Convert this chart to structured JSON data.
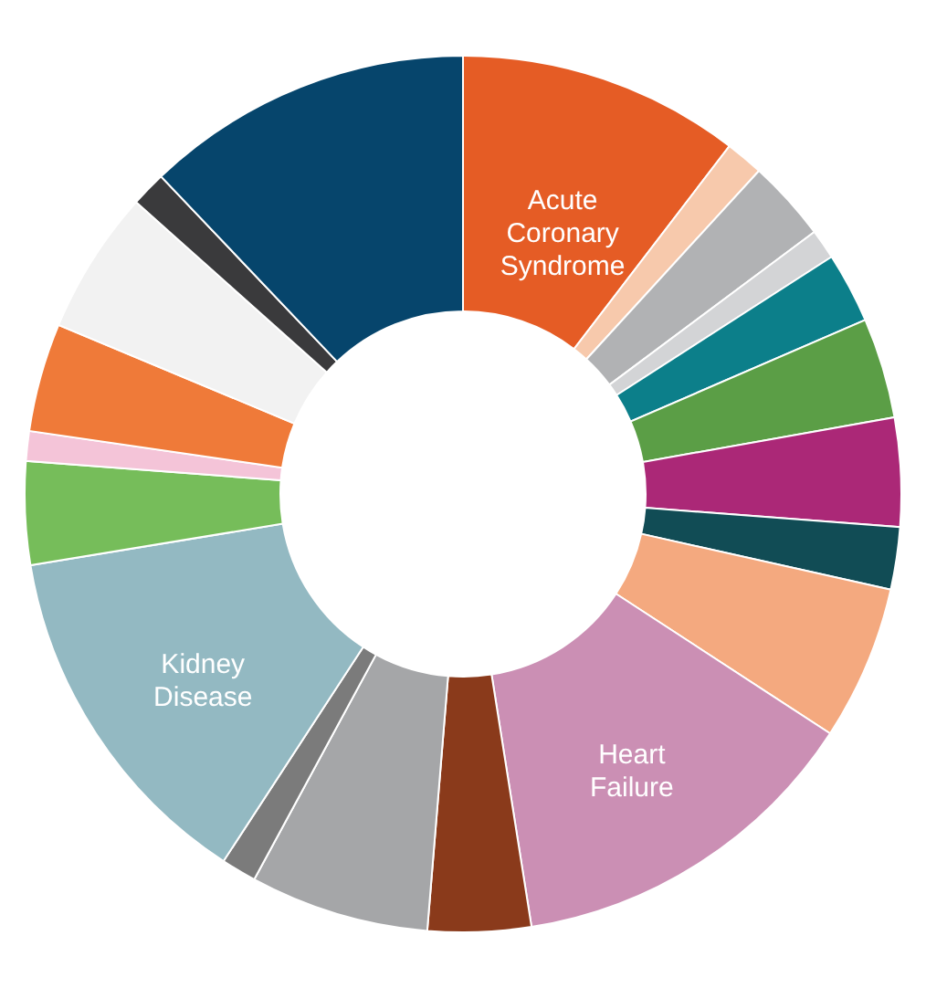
{
  "chart_data": {
    "type": "donut",
    "categories": [
      "Acute Coronary Syndrome",
      null,
      null,
      null,
      null,
      null,
      null,
      null,
      null,
      "Heart Failure",
      null,
      null,
      null,
      "Kidney Disease",
      null,
      null,
      null,
      null,
      null,
      null
    ],
    "values": [
      10.4,
      1.4,
      3.0,
      1.1,
      2.6,
      3.7,
      4.0,
      2.3,
      5.7,
      13.3,
      3.8,
      6.6,
      1.3,
      13.2,
      3.8,
      1.1,
      4.0,
      5.3,
      1.3,
      12.1
    ],
    "colors": [
      "#e55c25",
      "#f7c9ac",
      "#b1b2b4",
      "#d3d4d6",
      "#0c7f8a",
      "#5b9e46",
      "#ab2877",
      "#114c55",
      "#f4a97f",
      "#cb8fb4",
      "#8a3a1b",
      "#a5a6a8",
      "#7b7b7b",
      "#93b9c2",
      "#76bd5a",
      "#f4c4d8",
      "#ef7a39",
      "#f2f2f2",
      "#3a3a3c",
      "#06456c"
    ],
    "legend": false
  }
}
